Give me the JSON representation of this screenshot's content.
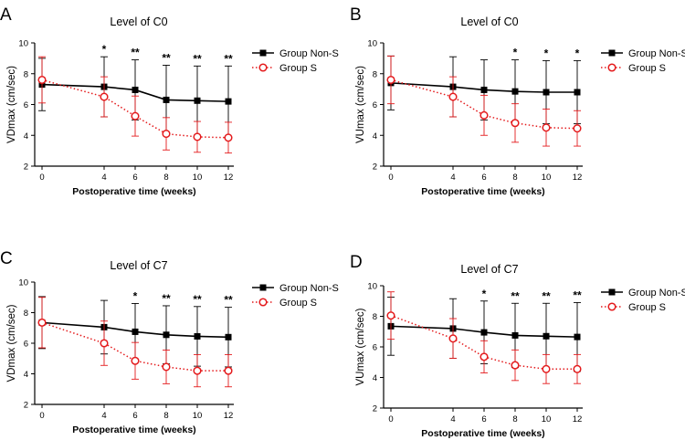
{
  "chart_data": [
    {
      "type": "line",
      "panel": "A",
      "title": "Level of C0",
      "xlabel": "Postoperative time (weeks)",
      "ylabel": "VDmax (cm/sec)",
      "x": [
        0,
        4,
        6,
        8,
        10,
        12
      ],
      "ylim": [
        2,
        10
      ],
      "yticks": [
        2,
        4,
        6,
        8,
        10
      ],
      "series": [
        {
          "name": "Group Non-S",
          "color": "#000000",
          "marker": "square",
          "line": "solid",
          "values": [
            7.3,
            7.15,
            6.95,
            6.3,
            6.25,
            6.2
          ],
          "err": [
            1.7,
            1.95,
            1.95,
            2.25,
            2.25,
            2.3
          ]
        },
        {
          "name": "Group S",
          "color": "#e41a1c",
          "marker": "circle",
          "line": "dotted",
          "values": [
            7.6,
            6.5,
            5.25,
            4.1,
            3.9,
            3.85
          ],
          "err": [
            1.5,
            1.3,
            1.3,
            1.05,
            1.0,
            1.0
          ]
        }
      ],
      "significance": [
        "",
        "*",
        "**",
        "**",
        "**",
        "**"
      ]
    },
    {
      "type": "line",
      "panel": "B",
      "title": "Level of C0",
      "xlabel": "Postoperative time (weeks)",
      "ylabel": "VUmax (cm/sec)",
      "x": [
        0,
        4,
        6,
        8,
        10,
        12
      ],
      "ylim": [
        2,
        10
      ],
      "yticks": [
        2,
        4,
        6,
        8,
        10
      ],
      "series": [
        {
          "name": "Group Non-S",
          "color": "#000000",
          "marker": "square",
          "line": "solid",
          "values": [
            7.4,
            7.15,
            6.95,
            6.85,
            6.8,
            6.8
          ],
          "err": [
            1.75,
            1.95,
            1.95,
            2.05,
            2.05,
            2.05
          ]
        },
        {
          "name": "Group S",
          "color": "#e41a1c",
          "marker": "circle",
          "line": "dotted",
          "values": [
            7.6,
            6.5,
            5.3,
            4.8,
            4.5,
            4.45
          ],
          "err": [
            1.55,
            1.3,
            1.3,
            1.25,
            1.2,
            1.15
          ]
        }
      ],
      "significance": [
        "",
        "",
        "",
        "*",
        "*",
        "*"
      ]
    },
    {
      "type": "line",
      "panel": "C",
      "title": "Level of C7",
      "xlabel": "Postoperative time (weeks)",
      "ylabel": "VDmax (cm/sec)",
      "x": [
        0,
        4,
        6,
        8,
        10,
        12
      ],
      "ylim": [
        2,
        10
      ],
      "yticks": [
        2,
        4,
        6,
        8,
        10
      ],
      "series": [
        {
          "name": "Group Non-S",
          "color": "#000000",
          "marker": "square",
          "line": "solid",
          "values": [
            7.35,
            7.05,
            6.75,
            6.55,
            6.45,
            6.4
          ],
          "err": [
            1.7,
            1.75,
            1.85,
            1.9,
            1.95,
            1.95
          ]
        },
        {
          "name": "Group S",
          "color": "#e41a1c",
          "marker": "circle",
          "line": "dotted",
          "values": [
            7.35,
            6.0,
            4.85,
            4.45,
            4.2,
            4.2
          ],
          "err": [
            1.65,
            1.45,
            1.2,
            1.1,
            1.05,
            1.05
          ]
        }
      ],
      "significance": [
        "",
        "",
        "*",
        "**",
        "**",
        "**"
      ]
    },
    {
      "type": "line",
      "panel": "D",
      "title": "Level of C7",
      "xlabel": "Postoperative time (weeks)",
      "ylabel": "VUmax (cm/sec)",
      "x": [
        0,
        4,
        6,
        8,
        10,
        12
      ],
      "ylim": [
        2,
        10
      ],
      "yticks": [
        2,
        4,
        6,
        8,
        10
      ],
      "series": [
        {
          "name": "Group Non-S",
          "color": "#000000",
          "marker": "square",
          "line": "solid",
          "values": [
            7.35,
            7.2,
            6.95,
            6.75,
            6.7,
            6.65
          ],
          "err": [
            1.9,
            1.95,
            2.05,
            2.1,
            2.15,
            2.25
          ]
        },
        {
          "name": "Group S",
          "color": "#e41a1c",
          "marker": "circle",
          "line": "dotted",
          "values": [
            8.05,
            6.55,
            5.35,
            4.8,
            4.55,
            4.55
          ],
          "err": [
            1.55,
            1.3,
            1.05,
            1.0,
            0.95,
            0.95
          ]
        }
      ],
      "significance": [
        "",
        "",
        "*",
        "**",
        "**",
        "**"
      ]
    }
  ]
}
